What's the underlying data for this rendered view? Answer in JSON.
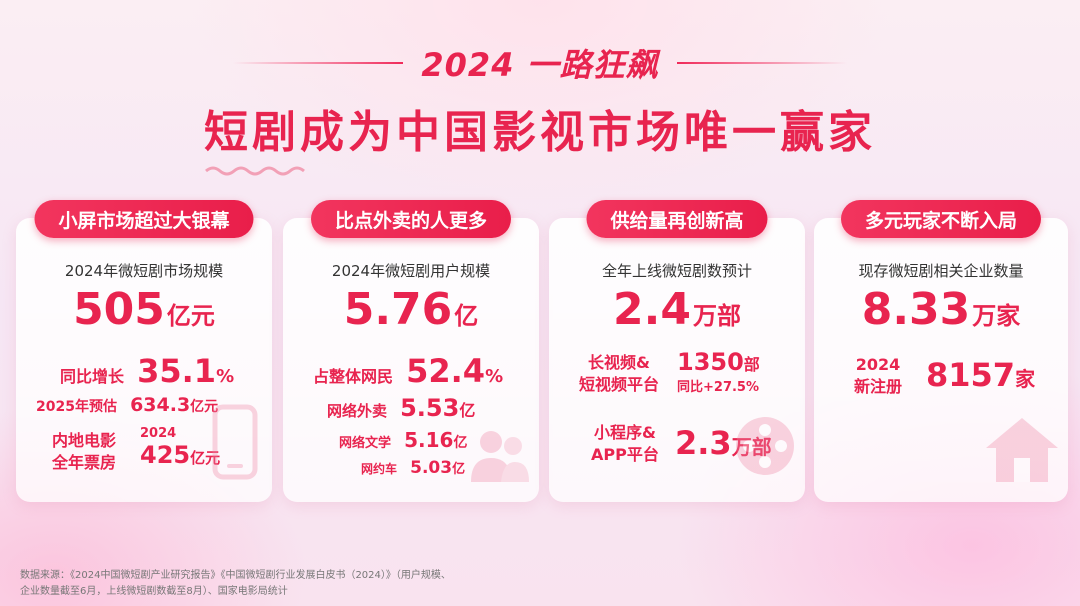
{
  "header": {
    "subtitle": "2024 一路狂飙",
    "title": "短剧成为中国影视市场唯一赢家"
  },
  "cards": [
    {
      "tag": "小屏市场超过大银幕",
      "label": "2024年微短剧市场规模",
      "big_value": "505",
      "big_unit": "亿元",
      "rows": [
        {
          "label": "同比增长",
          "value": "35.1",
          "unit": "%"
        },
        {
          "label": "2025年预估",
          "value": "634.3",
          "unit": "亿元"
        }
      ],
      "box_label_1": "内地电影",
      "box_label_2": "全年票房",
      "box_year": "2024",
      "box_value": "425",
      "box_unit": "亿元",
      "icon": "mobile-phone-icon"
    },
    {
      "tag": "比点外卖的人更多",
      "label": "2024年微短剧用户规模",
      "big_value": "5.76",
      "big_unit": "亿",
      "rows": [
        {
          "label": "占整体网民",
          "value": "52.4",
          "unit": "%"
        },
        {
          "label": "网络外卖",
          "value": "5.53",
          "unit": "亿"
        },
        {
          "label": "网络文学",
          "value": "5.16",
          "unit": "亿"
        },
        {
          "label": "网约车",
          "value": "5.03",
          "unit": "亿"
        }
      ],
      "icon": "users-icon"
    },
    {
      "tag": "供给量再创新高",
      "label": "全年上线微短剧数预计",
      "big_value": "2.4",
      "big_unit": "万部",
      "long_label_1": "长视频&",
      "long_label_2": "短视频平台",
      "long_value": "1350",
      "long_unit": "部",
      "long_growth": "同比+27.5%",
      "mini_label_1": "小程序&",
      "mini_label_2": "APP平台",
      "mini_value": "2.3",
      "mini_unit": "万部",
      "icon": "film-reel-icon"
    },
    {
      "tag": "多元玩家不断入局",
      "label": "现存微短剧相关企业数量",
      "big_value": "8.33",
      "big_unit": "万家",
      "new_label_1": "2024",
      "new_label_2": "新注册",
      "new_value": "8157",
      "new_unit": "家",
      "icon": "house-icon"
    }
  ],
  "source": {
    "line1": "数据来源：《2024中国微短剧产业研究报告》《中国微短剧行业发展白皮书（2024）》（用户规模、",
    "line2": "企业数量截至6月，上线微短剧数截至8月）、国家电影局统计"
  },
  "colors": {
    "accent": "#e8244f",
    "pill": "#f2355e"
  }
}
